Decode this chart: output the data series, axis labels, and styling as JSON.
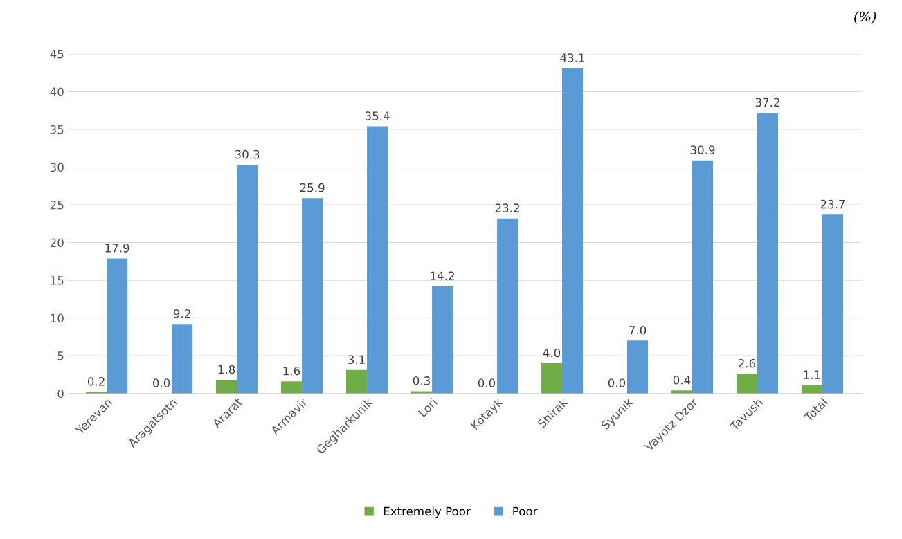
{
  "chart_data": {
    "type": "bar",
    "categories": [
      "Yerevan",
      "Aragatsotn",
      "Ararat",
      "Armavir",
      "Gegharkunik",
      "Lori",
      "Kotayk",
      "Shirak",
      "Syunik",
      "Vayotz Dzor",
      "Tavush",
      "Total"
    ],
    "series": [
      {
        "name": "Extremely Poor",
        "color": "#70ad47",
        "values": [
          0.2,
          0.0,
          1.8,
          1.6,
          3.1,
          0.3,
          0.0,
          4.0,
          0.0,
          0.4,
          2.6,
          1.1
        ],
        "value_labels": [
          "0.2",
          "0.0",
          "1.8",
          "1.6",
          "3.1",
          "0.3",
          "0.0",
          "4.0",
          "0.0",
          "0.4",
          "2.6",
          "1.1"
        ]
      },
      {
        "name": "Poor",
        "color": "#5b9bd5",
        "values": [
          17.9,
          9.2,
          30.3,
          25.9,
          35.4,
          14.2,
          23.2,
          43.1,
          7.0,
          30.9,
          37.2,
          23.7
        ],
        "value_labels": [
          "17.9",
          "9.2",
          "30.3",
          "25.9",
          "35.4",
          "14.2",
          "23.2",
          "43.1",
          "7.0",
          "30.9",
          "37.2",
          "23.7"
        ]
      }
    ],
    "ylim": [
      0,
      45
    ],
    "yticks": [
      0,
      5,
      10,
      15,
      20,
      25,
      30,
      35,
      40,
      45
    ],
    "grid": "y",
    "legend": "bottom",
    "annotations": [
      "(%)"
    ]
  }
}
